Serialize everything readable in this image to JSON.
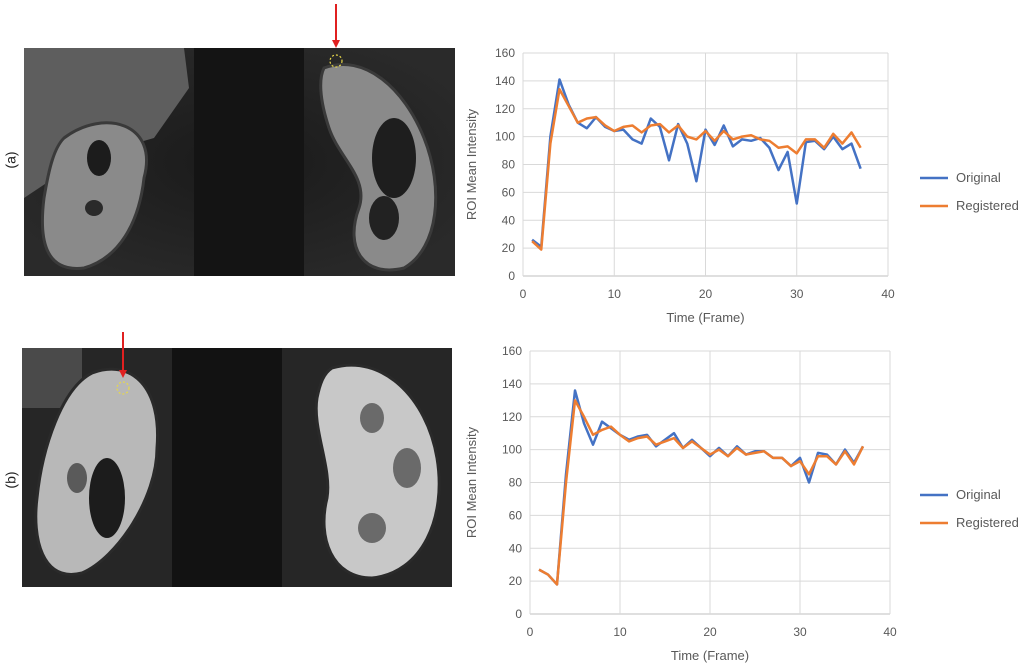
{
  "panels": [
    {
      "label": "(a)"
    },
    {
      "label": "(b)"
    }
  ],
  "colors": {
    "original": "#4472C4",
    "registered": "#ED7D31",
    "arrow": "#E02020",
    "roi": "#E8D84A",
    "grid": "#D9D9D9"
  },
  "chart_data": [
    {
      "type": "line",
      "title": "",
      "xlabel": "Time (Frame)",
      "ylabel": "ROI Mean Intensity",
      "xlim": [
        0,
        40
      ],
      "ylim": [
        0,
        160
      ],
      "xticks": [
        "0",
        "10",
        "20",
        "30",
        "40"
      ],
      "yticks": [
        "0",
        "20",
        "40",
        "60",
        "80",
        "100",
        "120",
        "140",
        "160"
      ],
      "grid": true,
      "legend_position": "right",
      "x": [
        1,
        2,
        3,
        4,
        5,
        6,
        7,
        8,
        9,
        10,
        11,
        12,
        13,
        14,
        15,
        16,
        17,
        18,
        19,
        20,
        21,
        22,
        23,
        24,
        25,
        26,
        27,
        28,
        29,
        30,
        31,
        32,
        33,
        34,
        35,
        36,
        37
      ],
      "series": [
        {
          "name": "Original",
          "values": [
            26,
            21,
            100,
            141,
            123,
            110,
            106,
            114,
            107,
            104,
            105,
            98,
            95,
            113,
            107,
            83,
            109,
            95,
            68,
            105,
            94,
            108,
            93,
            98,
            97,
            99,
            92,
            76,
            89,
            52,
            96,
            97,
            91,
            100,
            91,
            95,
            77
          ]
        },
        {
          "name": "Registered",
          "values": [
            25,
            19,
            95,
            134,
            122,
            110,
            113,
            114,
            108,
            104,
            107,
            108,
            103,
            108,
            109,
            103,
            108,
            100,
            98,
            104,
            97,
            104,
            98,
            100,
            101,
            98,
            97,
            92,
            93,
            88,
            98,
            98,
            92,
            102,
            95,
            103,
            92
          ]
        }
      ]
    },
    {
      "type": "line",
      "title": "",
      "xlabel": "Time (Frame)",
      "ylabel": "ROI Mean Intensity",
      "xlim": [
        0,
        40
      ],
      "ylim": [
        0,
        160
      ],
      "xticks": [
        "0",
        "10",
        "20",
        "30",
        "40"
      ],
      "yticks": [
        "0",
        "20",
        "40",
        "60",
        "80",
        "100",
        "120",
        "140",
        "160"
      ],
      "grid": true,
      "legend_position": "right",
      "x": [
        1,
        2,
        3,
        4,
        5,
        6,
        7,
        8,
        9,
        10,
        11,
        12,
        13,
        14,
        15,
        16,
        17,
        18,
        19,
        20,
        21,
        22,
        23,
        24,
        25,
        26,
        27,
        28,
        29,
        30,
        31,
        32,
        33,
        34,
        35,
        36,
        37
      ],
      "series": [
        {
          "name": "Original",
          "values": [
            27,
            24,
            18,
            85,
            136,
            116,
            103,
            117,
            113,
            109,
            106,
            108,
            109,
            102,
            106,
            110,
            101,
            106,
            101,
            96,
            101,
            96,
            102,
            97,
            99,
            99,
            95,
            95,
            90,
            95,
            80,
            98,
            97,
            91,
            100,
            92,
            102
          ]
        },
        {
          "name": "Registered",
          "values": [
            27,
            24,
            18,
            80,
            130,
            120,
            109,
            112,
            114,
            109,
            105,
            107,
            108,
            103,
            105,
            107,
            101,
            105,
            101,
            97,
            100,
            96,
            101,
            97,
            98,
            99,
            95,
            95,
            90,
            93,
            85,
            96,
            96,
            91,
            99,
            91,
            102
          ]
        }
      ]
    }
  ]
}
